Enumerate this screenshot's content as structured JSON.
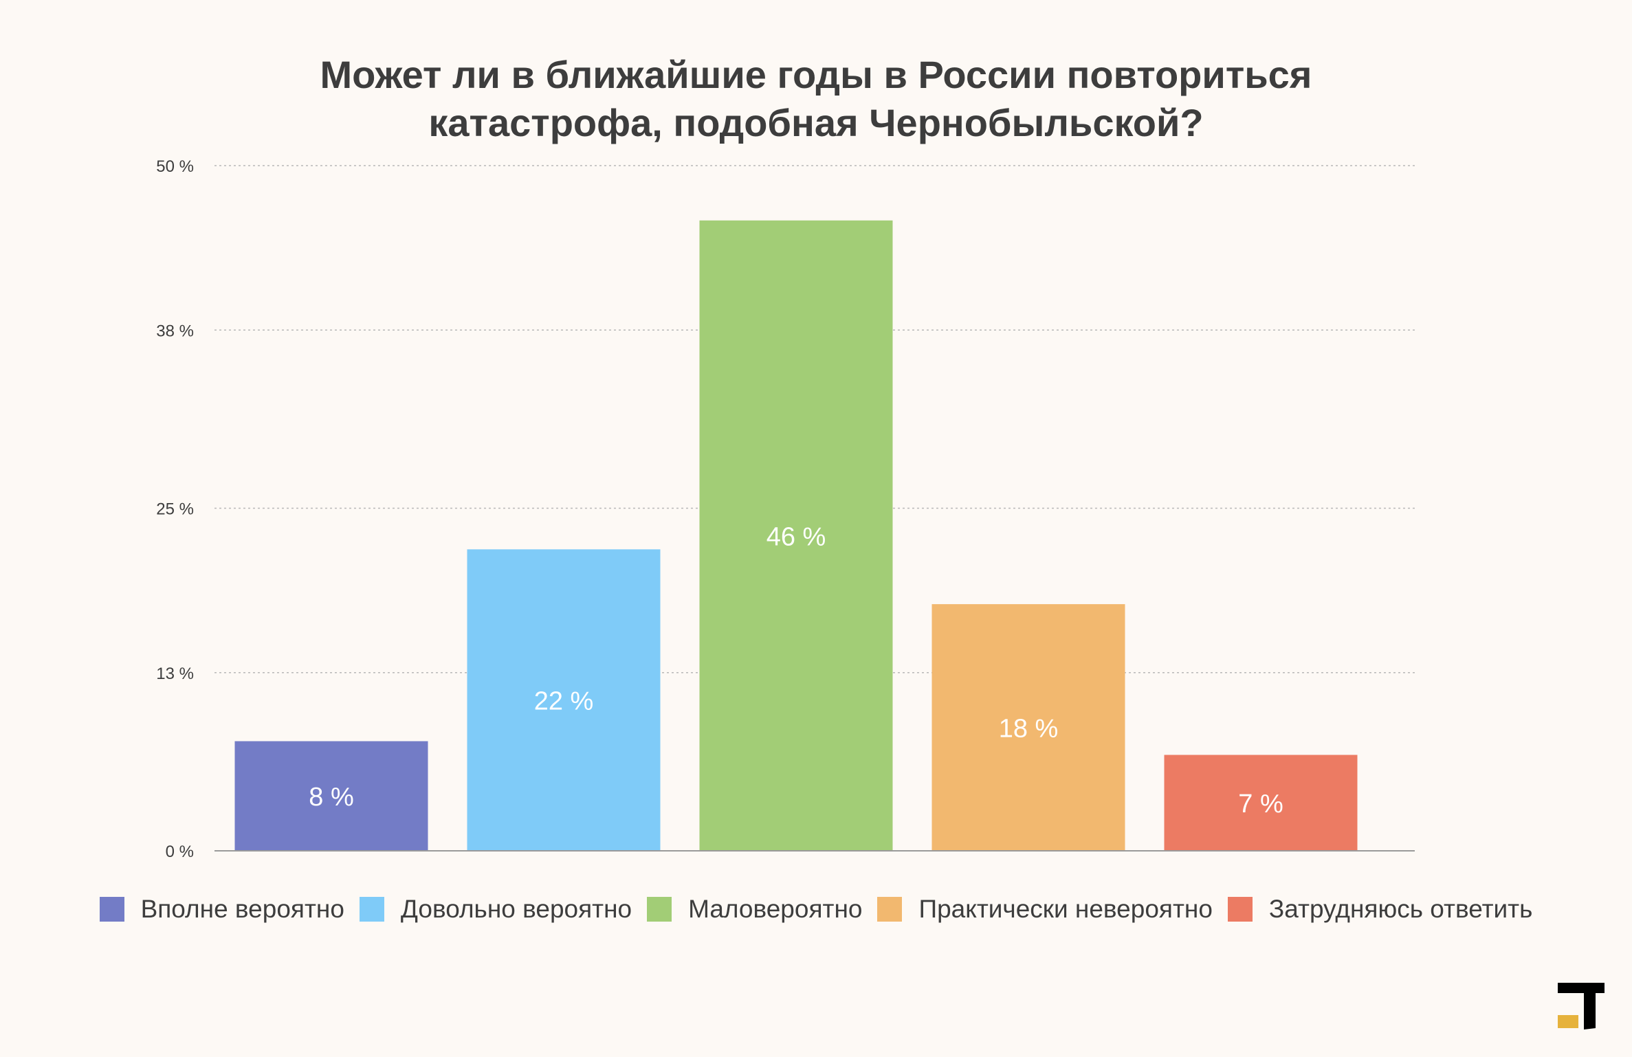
{
  "chart_data": {
    "type": "bar",
    "title": "Может ли в ближайшие годы в России повториться катастрофа, подобная Чернобыльской?",
    "title_lines": [
      "Может ли в ближайшие годы в России повториться",
      "катастрофа, подобная Чернобыльской?"
    ],
    "categories": [
      "Вполне вероятно",
      "Довольно вероятно",
      "Маловероятно",
      "Практически невероятно",
      "Затрудняюсь ответить"
    ],
    "values": [
      8,
      22,
      46,
      18,
      7
    ],
    "value_labels": [
      "8 %",
      "22 %",
      "46 %",
      "18 %",
      "7 %"
    ],
    "colors": [
      "#737cc6",
      "#7fcbf8",
      "#a2cd76",
      "#f2b86f",
      "#ec7b63"
    ],
    "ylim": [
      0,
      50
    ],
    "yticks": [
      0,
      13,
      25,
      38,
      50
    ],
    "ytick_labels": [
      "0 %",
      "13 %",
      "25 %",
      "38 %",
      "50 %"
    ],
    "xlabel": "",
    "ylabel": "",
    "grid": true,
    "legend": "bottom"
  },
  "logo": {
    "name": "t-journal-logo-icon",
    "colors": {
      "primary": "#000000",
      "accent": "#e6b23c"
    }
  }
}
